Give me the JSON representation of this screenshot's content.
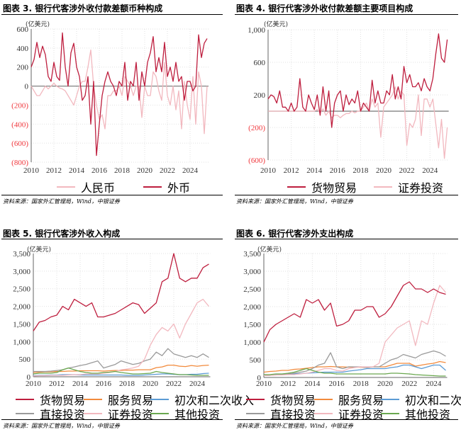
{
  "panels": [
    {
      "title": "图表 3. 银行代客涉外收付款差额币种构成",
      "unit": "(亿美元)",
      "source": "资料来源：国家外汇管理局，Wind，中银证券"
    },
    {
      "title": "图表 4. 银行代客涉外收付款差额主要项目构成",
      "unit": "(亿美元)",
      "source": "资料来源：国家外汇管理局，Wind，中银证券"
    },
    {
      "title": "图表 5. 银行代客涉外收入构成",
      "unit": "(亿美元)",
      "source": "资料来源：国家外汇管理局，Wind，中银证券"
    },
    {
      "title": "图表 6. 银行代客涉外支出构成",
      "unit": "(亿美元)",
      "source": "资料来源：国家外汇管理局，Wind，中银证券"
    }
  ],
  "colors": {
    "negative_tick": "#f0383d",
    "zero_line": "#777777"
  },
  "chart_data": [
    {
      "type": "line",
      "ylim": [
        -800,
        600
      ],
      "xlim": [
        2010,
        2025.5
      ],
      "yticks": [
        600,
        400,
        200,
        0,
        -200,
        -400,
        -600,
        -800
      ],
      "ytick_labels": [
        "600",
        "400",
        "200",
        "0",
        "(200)",
        "(400)",
        "(600)",
        "(800)"
      ],
      "xticks": [
        "2010",
        "2012",
        "2014",
        "2016",
        "2018",
        "2020",
        "2022",
        "2024"
      ],
      "x_start": 2010,
      "x_step": 0.25,
      "series": [
        {
          "name": "人民币",
          "color": "#f2b8bf",
          "values": [
            0,
            -50,
            -100,
            -100,
            -50,
            0,
            -30,
            0,
            30,
            0,
            -20,
            -30,
            -50,
            -100,
            -150,
            -200,
            -100,
            0,
            50,
            50,
            200,
            380,
            0,
            -200,
            -350,
            -300,
            -450,
            -100,
            -100,
            -50,
            -50,
            0,
            -100,
            100,
            50,
            0,
            -100,
            0,
            0,
            -330,
            0,
            -100,
            -100,
            150,
            100,
            -50,
            -150,
            250,
            -100,
            -200,
            0,
            -250,
            -50,
            -450,
            50,
            -200,
            -350,
            100,
            -400,
            150,
            0,
            -500,
            0
          ]
        },
        {
          "name": "外币",
          "color": "#be1e3e",
          "values": [
            200,
            280,
            460,
            300,
            420,
            330,
            100,
            50,
            250,
            100,
            60,
            560,
            200,
            0,
            350,
            450,
            200,
            100,
            -150,
            -100,
            100,
            -400,
            50,
            -730,
            -400,
            -100,
            50,
            150,
            50,
            0,
            -100,
            50,
            0,
            250,
            -150,
            50,
            0,
            250,
            -150,
            150,
            0,
            250,
            350,
            520,
            150,
            300,
            150,
            460,
            100,
            200,
            50,
            250,
            50,
            100,
            -150,
            50,
            50,
            -50,
            0,
            540,
            300,
            450,
            500
          ]
        }
      ]
    },
    {
      "type": "line",
      "ylim": [
        -600,
        1000
      ],
      "xlim": [
        2010,
        2025.5
      ],
      "yticks": [
        1000,
        600,
        200,
        -200,
        -600
      ],
      "ytick_labels": [
        "1,000",
        "600",
        "200",
        "(200)",
        "(600)"
      ],
      "xticks": [
        "2010",
        "2012",
        "2014",
        "2016",
        "2018",
        "2020",
        "2022",
        "2024"
      ],
      "x_start": 2010,
      "x_step": 0.25,
      "series": [
        {
          "name": "货物贸易",
          "color": "#be1e3e",
          "values": [
            150,
            200,
            180,
            100,
            250,
            50,
            50,
            0,
            100,
            0,
            50,
            400,
            50,
            0,
            200,
            100,
            20,
            200,
            -50,
            300,
            0,
            250,
            -200,
            100,
            200,
            250,
            0,
            200,
            80,
            150,
            100,
            250,
            0,
            100,
            50,
            0,
            380,
            100,
            250,
            100,
            100,
            250,
            200,
            450,
            150,
            300,
            150,
            550,
            350,
            450,
            300,
            300,
            350,
            250,
            400,
            300,
            250,
            400,
            700,
            950,
            650,
            600,
            880
          ]
        },
        {
          "name": "证券投资",
          "color": "#f2b8bf",
          "values": [
            0,
            0,
            0,
            0,
            0,
            0,
            0,
            0,
            0,
            0,
            0,
            0,
            0,
            0,
            0,
            0,
            0,
            20,
            -20,
            30,
            -50,
            0,
            -80,
            -50,
            -50,
            -80,
            -50,
            -30,
            -30,
            0,
            -20,
            0,
            0,
            50,
            100,
            0,
            150,
            50,
            100,
            -320,
            50,
            100,
            150,
            200,
            300,
            150,
            250,
            200,
            -420,
            -150,
            -200,
            -100,
            200,
            -300,
            150,
            150,
            50,
            150,
            -150,
            -450,
            -100,
            -580,
            -200
          ]
        }
      ]
    },
    {
      "type": "line",
      "ylim": [
        0,
        3500
      ],
      "xlim": [
        2010,
        2025
      ],
      "yticks": [
        3500,
        3000,
        2500,
        2000,
        1500,
        1000,
        500,
        0
      ],
      "ytick_labels": [
        "3,500",
        "3,000",
        "2,500",
        "2,000",
        "1,500",
        "1,000",
        "500",
        "0"
      ],
      "xticks": [
        "2010",
        "2012",
        "2014",
        "2016",
        "2018",
        "2020",
        "2022",
        "2024"
      ],
      "x_start": 2010,
      "x_step": 0.5,
      "series": [
        {
          "name": "货物贸易",
          "color": "#be1e3e",
          "values": [
            1300,
            1550,
            1600,
            1700,
            1750,
            2000,
            1900,
            2200,
            2100,
            2000,
            2100,
            1700,
            1700,
            1750,
            1800,
            1900,
            2000,
            2100,
            2050,
            1800,
            1950,
            2100,
            2700,
            2800,
            3500,
            2800,
            2700,
            2800,
            2800,
            3100,
            3200
          ]
        },
        {
          "name": "服务贸易",
          "color": "#f28a3c",
          "values": [
            120,
            130,
            140,
            140,
            150,
            150,
            160,
            160,
            170,
            170,
            170,
            170,
            160,
            170,
            180,
            180,
            190,
            190,
            200,
            200,
            200,
            260,
            280,
            330,
            330,
            300,
            290,
            320,
            300,
            320,
            330
          ]
        },
        {
          "name": "初次和二次收入",
          "color": "#5b9bd5",
          "values": [
            30,
            40,
            40,
            50,
            50,
            60,
            60,
            60,
            50,
            50,
            50,
            50,
            50,
            50,
            50,
            50,
            40,
            40,
            40,
            50,
            60,
            70,
            80,
            80,
            70,
            60,
            60,
            70,
            70,
            90,
            100
          ]
        },
        {
          "name": "直接投资",
          "color": "#9a9a9a",
          "values": [
            150,
            150,
            150,
            160,
            180,
            200,
            250,
            280,
            320,
            350,
            400,
            450,
            250,
            300,
            350,
            450,
            400,
            350,
            380,
            450,
            500,
            700,
            600,
            800,
            650,
            600,
            550,
            600,
            550,
            650,
            550
          ]
        },
        {
          "name": "证券投资",
          "color": "#f2b8bf",
          "values": [
            20,
            30,
            30,
            40,
            40,
            40,
            50,
            60,
            60,
            80,
            80,
            80,
            100,
            120,
            150,
            200,
            220,
            250,
            300,
            500,
            900,
            1200,
            1400,
            1300,
            1500,
            1100,
            1500,
            1800,
            2100,
            2200,
            2000
          ]
        },
        {
          "name": "其他投资",
          "color": "#6aa84f",
          "values": [
            80,
            100,
            100,
            100,
            120,
            200,
            250,
            200,
            150,
            120,
            100,
            100,
            120,
            130,
            150,
            120,
            100,
            80,
            80,
            90,
            100,
            150,
            120,
            100,
            80,
            60,
            60,
            50,
            40,
            40,
            40
          ]
        }
      ]
    },
    {
      "type": "line",
      "ylim": [
        0,
        3500
      ],
      "xlim": [
        2010,
        2025
      ],
      "yticks": [
        3500,
        3000,
        2500,
        2000,
        1500,
        1000,
        500,
        0
      ],
      "ytick_labels": [
        "3,500",
        "3,000",
        "2,500",
        "2,000",
        "1,500",
        "1,000",
        "500",
        "0"
      ],
      "xticks": [
        "2010",
        "2012",
        "2014",
        "2016",
        "2018",
        "2020",
        "2022",
        "2024"
      ],
      "x_start": 2010,
      "x_step": 0.5,
      "series": [
        {
          "name": "货物贸易",
          "color": "#be1e3e",
          "values": [
            1000,
            1350,
            1500,
            1600,
            1700,
            1800,
            1700,
            2200,
            2100,
            2200,
            1900,
            2100,
            1450,
            1500,
            1600,
            1900,
            1900,
            2000,
            2000,
            1700,
            1800,
            2000,
            2300,
            2600,
            2700,
            2500,
            2500,
            2400,
            2500,
            2400,
            2350
          ]
        },
        {
          "name": "服务贸易",
          "color": "#f28a3c",
          "values": [
            150,
            170,
            180,
            200,
            200,
            230,
            240,
            260,
            280,
            300,
            300,
            310,
            300,
            300,
            290,
            290,
            290,
            280,
            300,
            300,
            300,
            350,
            400,
            400,
            400,
            320,
            350,
            380,
            400,
            450,
            420
          ]
        },
        {
          "name": "初次和二次收入",
          "color": "#5b9bd5",
          "values": [
            50,
            60,
            80,
            80,
            100,
            100,
            110,
            120,
            130,
            140,
            150,
            150,
            150,
            150,
            180,
            200,
            220,
            250,
            250,
            250,
            250,
            280,
            300,
            350,
            350,
            300,
            250,
            300,
            350,
            350,
            200
          ]
        },
        {
          "name": "直接投资",
          "color": "#9a9a9a",
          "values": [
            50,
            60,
            70,
            80,
            100,
            120,
            150,
            180,
            250,
            350,
            400,
            700,
            300,
            250,
            300,
            300,
            300,
            280,
            300,
            300,
            400,
            500,
            550,
            650,
            600,
            550,
            650,
            700,
            750,
            700,
            600
          ]
        },
        {
          "name": "证券投资",
          "color": "#f2b8bf",
          "values": [
            50,
            60,
            70,
            70,
            80,
            80,
            100,
            120,
            150,
            200,
            250,
            250,
            200,
            180,
            250,
            280,
            300,
            300,
            300,
            400,
            1000,
            1200,
            1400,
            1500,
            1600,
            900,
            1600,
            1500,
            2100,
            2600,
            2400
          ]
        },
        {
          "name": "其他投资",
          "color": "#6aa84f",
          "values": [
            80,
            80,
            100,
            100,
            120,
            150,
            200,
            250,
            200,
            150,
            120,
            120,
            100,
            100,
            100,
            100,
            100,
            100,
            100,
            100,
            100,
            120,
            120,
            110,
            100,
            80,
            70,
            60,
            50,
            40,
            40
          ]
        }
      ]
    }
  ]
}
